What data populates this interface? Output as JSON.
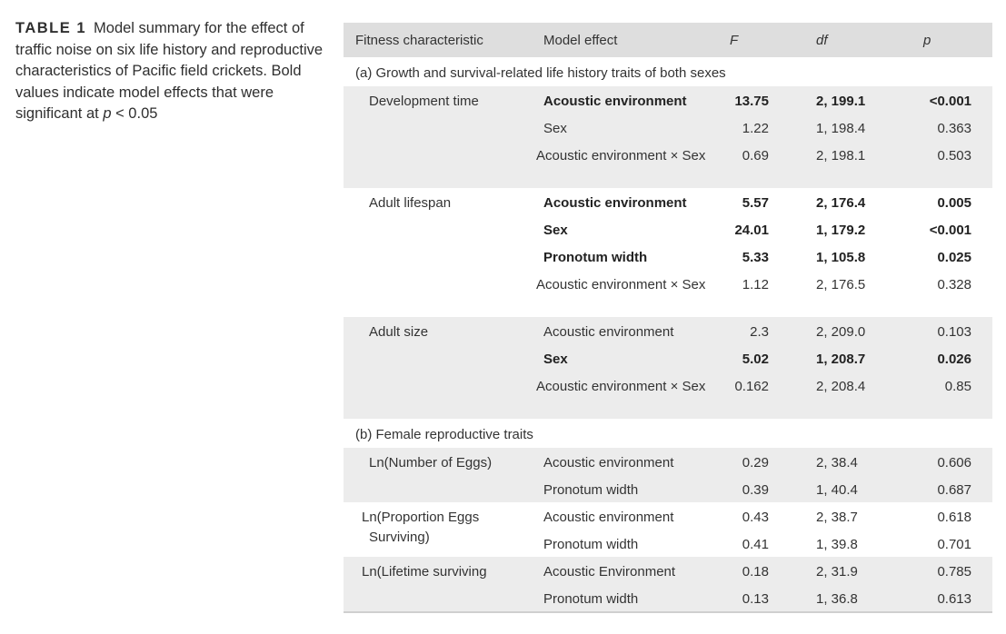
{
  "caption": {
    "label": "TABLE 1",
    "text_before": "Model summary for the effect of traffic noise on six life history and reproductive characteristics of Pacific field crickets. Bold values indicate model effects that were significant at ",
    "p_symbol": "p",
    "text_after": " < 0.05"
  },
  "header": {
    "fitness": "Fitness characteristic",
    "effect": "Model effect",
    "f": "F",
    "df": "df",
    "p": "p"
  },
  "sections": {
    "a": "(a) Growth and survival-related life history traits of both sexes",
    "b": "(b) Female reproductive traits"
  },
  "rows": [
    {
      "fitness": "Development time",
      "effect": "Acoustic environment",
      "f": "13.75",
      "df": "2, 199.1",
      "p": "<0.001"
    },
    {
      "fitness": "",
      "effect": "Sex",
      "f": "1.22",
      "df": "1, 198.4",
      "p": "0.363"
    },
    {
      "fitness": "",
      "effect": "Acoustic environment × Sex",
      "f": "0.69",
      "df": "2, 198.1",
      "p": "0.503"
    },
    {
      "fitness": "Adult lifespan",
      "effect": "Acoustic environment",
      "f": "5.57",
      "df": "2, 176.4",
      "p": "0.005"
    },
    {
      "fitness": "",
      "effect": "Sex",
      "f": "24.01",
      "df": "1, 179.2",
      "p": "<0.001"
    },
    {
      "fitness": "",
      "effect": "Pronotum width",
      "f": "5.33",
      "df": "1, 105.8",
      "p": "0.025"
    },
    {
      "fitness": "",
      "effect": "Acoustic environment × Sex",
      "f": "1.12",
      "df": "2, 176.5",
      "p": "0.328"
    },
    {
      "fitness": "Adult size",
      "effect": "Acoustic environment",
      "f": "2.3",
      "df": "2, 209.0",
      "p": "0.103"
    },
    {
      "fitness": "",
      "effect": "Sex",
      "f": "5.02",
      "df": "1, 208.7",
      "p": "0.026"
    },
    {
      "fitness": "",
      "effect": "Acoustic environment × Sex",
      "f": "0.162",
      "df": "2, 208.4",
      "p": "0.85"
    },
    {
      "fitness": "Ln(Number of Eggs)",
      "effect": "Acoustic environment",
      "f": "0.29",
      "df": "2, 38.4",
      "p": "0.606"
    },
    {
      "fitness": "",
      "effect": "Pronotum width",
      "f": "0.39",
      "df": "1, 40.4",
      "p": "0.687"
    },
    {
      "fitness": "Ln(Proportion Eggs Surviving)",
      "effect": "Acoustic environment",
      "f": "0.43",
      "df": "2, 38.7",
      "p": "0.618"
    },
    {
      "fitness": "",
      "effect": "Pronotum width",
      "f": "0.41",
      "df": "1, 39.8",
      "p": "0.701"
    },
    {
      "fitness": "Ln(Lifetime surviving offspring)",
      "effect": "Acoustic Environment",
      "f": "0.18",
      "df": "2, 31.9",
      "p": "0.785"
    },
    {
      "fitness": "",
      "effect": "Pronotum width",
      "f": "0.13",
      "df": "1, 36.8",
      "p": "0.613"
    }
  ]
}
